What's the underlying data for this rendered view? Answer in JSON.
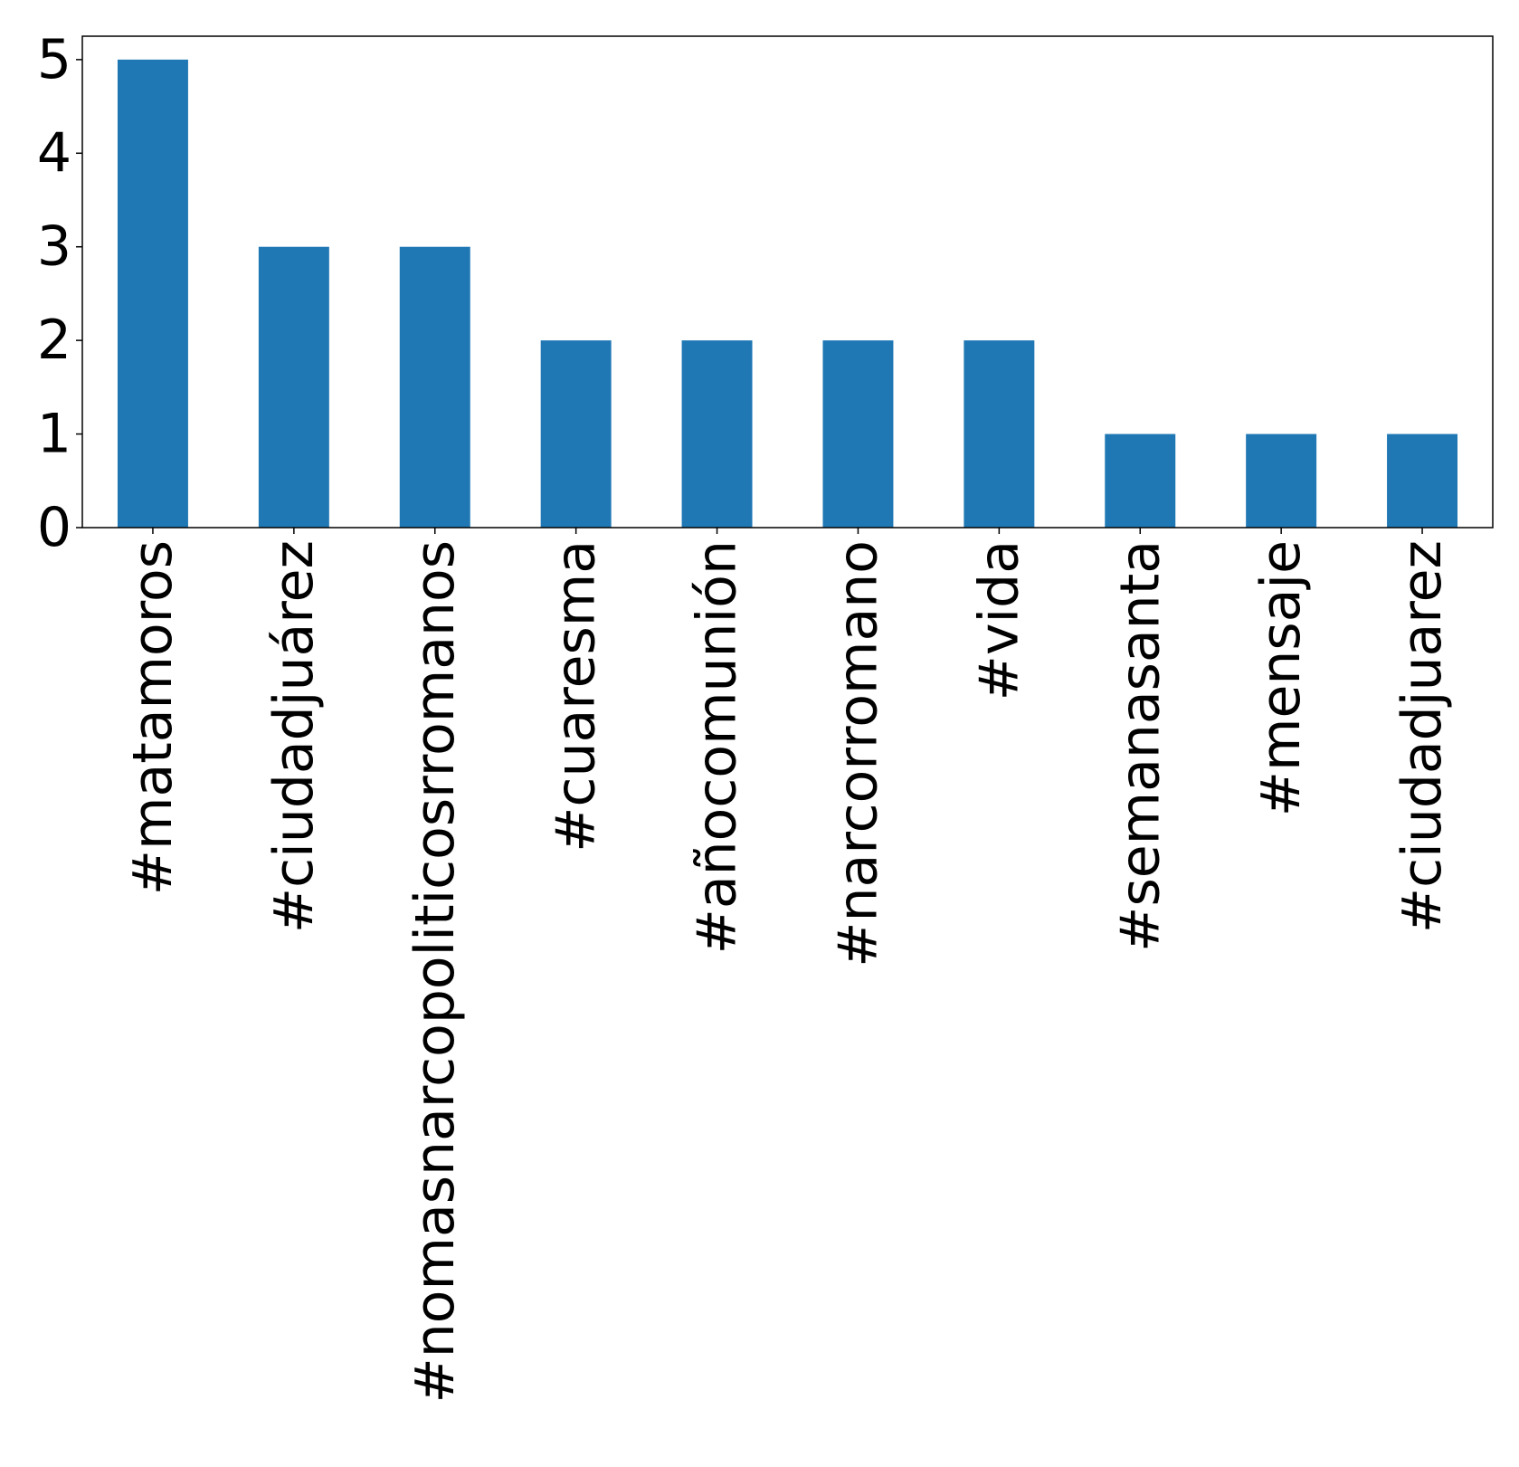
{
  "chart_data": {
    "type": "bar",
    "categories": [
      "#matamoros",
      "#ciudadjuárez",
      "#nomasnarcopoliticosrromanos",
      "#cuaresma",
      "#añocomunión",
      "#narcorromano",
      "#vida",
      "#semanasanta",
      "#mensaje",
      "#ciudadjuarez"
    ],
    "values": [
      5,
      3,
      3,
      2,
      2,
      2,
      2,
      1,
      1,
      1
    ],
    "title": "",
    "xlabel": "",
    "ylabel": "",
    "ylim": [
      0,
      5.25
    ],
    "yticks": [
      "0",
      "1",
      "2",
      "3",
      "4",
      "5"
    ],
    "grid": false,
    "legend": "none",
    "bar_color": "#1f77b4"
  }
}
